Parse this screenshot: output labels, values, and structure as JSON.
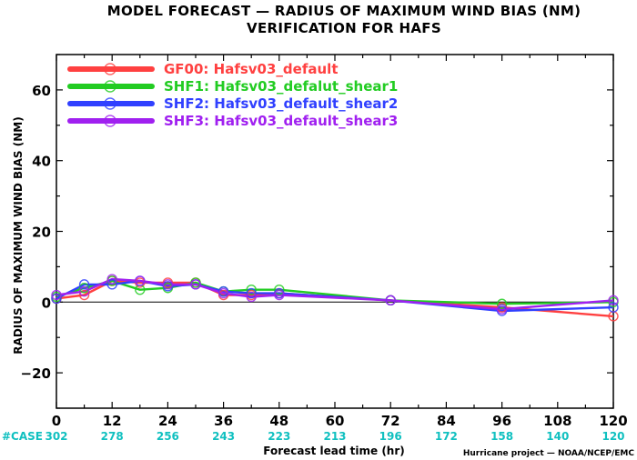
{
  "chart_data": {
    "type": "line",
    "title": "MODEL FORECAST — RADIUS OF MAXIMUM WIND BIAS (NM)",
    "subtitle": "VERIFICATION FOR HAFS",
    "xlabel": "Forecast lead time (hr)",
    "ylabel": "RADIUS OF MAXIMUM WIND BIAS (NM)",
    "xlim": [
      0,
      120
    ],
    "ylim": [
      -30,
      70
    ],
    "xticks": [
      0,
      12,
      24,
      36,
      48,
      60,
      72,
      84,
      96,
      108,
      120
    ],
    "yticks": [
      -20,
      0,
      20,
      40,
      60
    ],
    "grid": false,
    "legend_position": "top-left",
    "x": [
      0,
      6,
      12,
      18,
      24,
      30,
      36,
      42,
      48,
      72,
      96,
      120
    ],
    "series": [
      {
        "name": "GF00: Hafsv03_default",
        "color": "#ff4040",
        "values": [
          1.0,
          2.0,
          6.0,
          5.5,
          5.5,
          5.5,
          2.0,
          2.0,
          2.5,
          0.5,
          -1.5,
          -4.0
        ]
      },
      {
        "name": "SHF1: Hafsv03_defalut_shear1",
        "color": "#22cc22",
        "values": [
          1.5,
          4.0,
          6.0,
          3.5,
          4.0,
          5.5,
          3.0,
          3.5,
          3.5,
          0.5,
          -0.5,
          0.0
        ]
      },
      {
        "name": "SHF2: Hafsv03_default_shear2",
        "color": "#3040ff",
        "values": [
          1.0,
          5.0,
          5.0,
          6.0,
          4.5,
          5.0,
          3.0,
          2.5,
          2.5,
          0.5,
          -2.5,
          -1.5
        ]
      },
      {
        "name": "SHF3: Hafsv03_default_shear3",
        "color": "#a020f0",
        "values": [
          2.0,
          3.0,
          6.5,
          6.0,
          5.0,
          5.0,
          2.5,
          1.5,
          2.0,
          0.5,
          -2.0,
          0.5
        ]
      }
    ],
    "case_label": "#CASE",
    "case_color": "#10c0c0",
    "case_counts": [
      302,
      278,
      256,
      243,
      223,
      213,
      196,
      172,
      158,
      140,
      120
    ],
    "credit": "Hurricane project — NOAA/NCEP/EMC"
  }
}
